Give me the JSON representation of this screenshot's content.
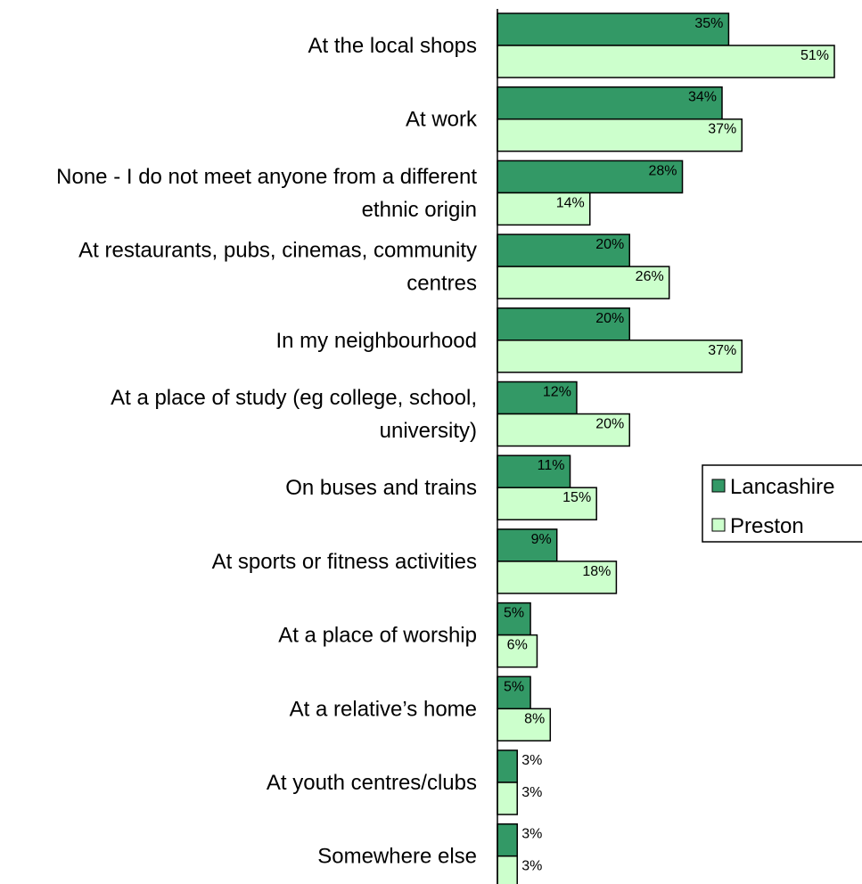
{
  "chart_data": {
    "type": "bar",
    "orientation": "horizontal",
    "categories": [
      [
        "At the local shops"
      ],
      [
        "At work"
      ],
      [
        "None - I do not meet anyone from a different",
        "ethnic origin"
      ],
      [
        "At restaurants, pubs, cinemas, community",
        "centres"
      ],
      [
        "In my neighbourhood"
      ],
      [
        "At a place of study (eg college, school,",
        "university)"
      ],
      [
        "On buses and trains"
      ],
      [
        "At sports or fitness activities"
      ],
      [
        "At a place of worship"
      ],
      [
        "At a relative’s home"
      ],
      [
        "At youth centres/clubs"
      ],
      [
        "Somewhere else"
      ]
    ],
    "series": [
      {
        "name": "Lancashire",
        "color": "#339966",
        "values": [
          35,
          34,
          28,
          20,
          20,
          12,
          11,
          9,
          5,
          5,
          3,
          3
        ],
        "labels": [
          "35%",
          "34%",
          "28%",
          "20%",
          "20%",
          "12%",
          "11%",
          "9%",
          "5%",
          "5%",
          "3%",
          "3%"
        ]
      },
      {
        "name": "Preston",
        "color": "#ccffcc",
        "values": [
          51,
          37,
          14,
          26,
          37,
          20,
          15,
          18,
          6,
          8,
          3,
          3
        ],
        "labels": [
          "51%",
          "37%",
          "14%",
          "26%",
          "37%",
          "20%",
          "15%",
          "18%",
          "6%",
          "8%",
          "3%",
          "3%"
        ]
      }
    ],
    "title": "",
    "xlabel": "",
    "ylabel": "",
    "xlim": [
      0,
      51
    ],
    "grid": false,
    "legend": "right"
  }
}
